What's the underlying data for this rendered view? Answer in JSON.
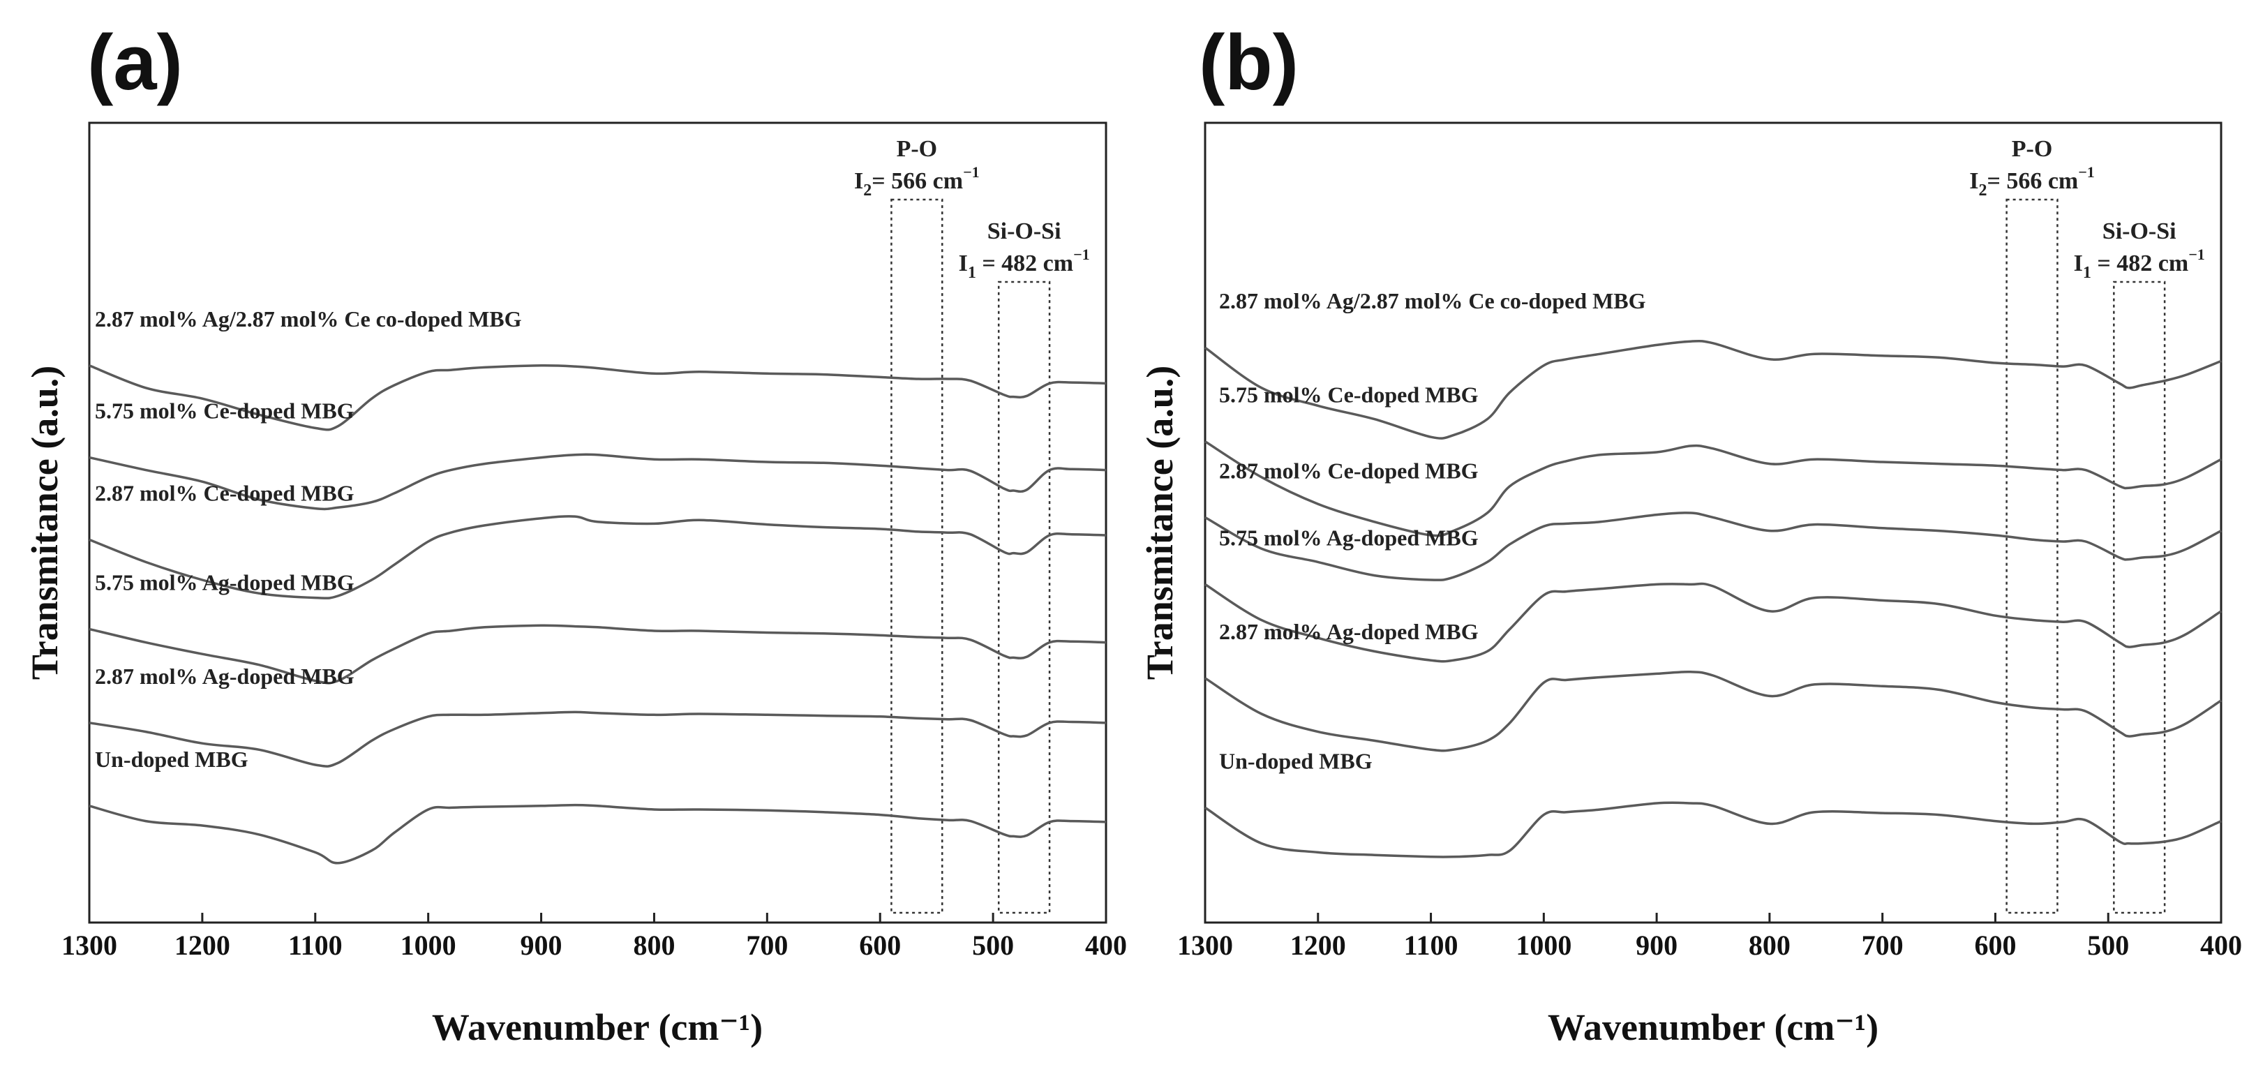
{
  "chart_data": [
    {
      "panel": "(a)",
      "type": "line",
      "xlabel": "Wavenumber (cm⁻¹)",
      "ylabel": "Transmitance (a.u.)",
      "xlim": [
        1300,
        400
      ],
      "x_reversed": true,
      "x_ticks": [
        "1300",
        "1200",
        "1100",
        "1000",
        "900",
        "800",
        "700",
        "600",
        "500",
        "400"
      ],
      "y_ticks_shown": false,
      "x": [
        1300,
        1250,
        1200,
        1150,
        1100,
        1080,
        1050,
        1030,
        1000,
        980,
        950,
        900,
        870,
        850,
        800,
        760,
        700,
        650,
        600,
        566,
        540,
        520,
        490,
        482,
        470,
        450,
        430,
        400
      ],
      "series": [
        {
          "name": "2.87 mol% Ag/2.87 mol% Ce co-doped MBG",
          "offset": 5,
          "values": [
            5.15,
            4.9,
            4.78,
            4.6,
            4.45,
            4.47,
            4.78,
            4.93,
            5.08,
            5.1,
            5.13,
            5.15,
            5.14,
            5.12,
            5.06,
            5.08,
            5.06,
            5.05,
            5.02,
            5.0,
            5.0,
            4.98,
            4.82,
            4.8,
            4.81,
            4.95,
            4.96,
            4.95
          ]
        },
        {
          "name": "5.75 mol% Ce-doped MBG",
          "offset": 4,
          "values": [
            4.12,
            3.98,
            3.85,
            3.65,
            3.55,
            3.56,
            3.62,
            3.72,
            3.9,
            3.98,
            4.05,
            4.12,
            4.15,
            4.15,
            4.1,
            4.1,
            4.07,
            4.06,
            4.03,
            4.0,
            3.98,
            3.97,
            3.77,
            3.75,
            3.76,
            3.98,
            3.99,
            3.98
          ]
        },
        {
          "name": "2.87 mol% Ce-doped MBG",
          "offset": 3,
          "values": [
            3.2,
            2.95,
            2.75,
            2.6,
            2.55,
            2.57,
            2.75,
            2.92,
            3.18,
            3.28,
            3.36,
            3.44,
            3.46,
            3.4,
            3.38,
            3.42,
            3.37,
            3.34,
            3.32,
            3.29,
            3.28,
            3.26,
            3.06,
            3.05,
            3.06,
            3.25,
            3.26,
            3.25
          ]
        },
        {
          "name": "5.75 mol% Ag-doped MBG",
          "offset": 2,
          "values": [
            2.2,
            2.05,
            1.92,
            1.8,
            1.62,
            1.62,
            1.85,
            1.98,
            2.15,
            2.18,
            2.22,
            2.24,
            2.23,
            2.22,
            2.18,
            2.18,
            2.16,
            2.15,
            2.13,
            2.11,
            2.1,
            2.08,
            1.9,
            1.88,
            1.89,
            2.05,
            2.06,
            2.05
          ]
        },
        {
          "name": "2.87 mol% Ag-doped MBG",
          "offset": 1,
          "values": [
            1.15,
            1.05,
            0.92,
            0.85,
            0.68,
            0.7,
            0.95,
            1.08,
            1.22,
            1.24,
            1.24,
            1.26,
            1.27,
            1.26,
            1.24,
            1.25,
            1.24,
            1.23,
            1.22,
            1.2,
            1.19,
            1.18,
            1.02,
            1.0,
            1.01,
            1.15,
            1.16,
            1.15
          ]
        },
        {
          "name": "Un-doped MBG",
          "offset": 0,
          "values": [
            0.22,
            0.05,
            0.0,
            -0.1,
            -0.3,
            -0.42,
            -0.28,
            -0.08,
            0.18,
            0.2,
            0.21,
            0.22,
            0.23,
            0.22,
            0.18,
            0.18,
            0.17,
            0.15,
            0.12,
            0.08,
            0.06,
            0.05,
            -0.1,
            -0.12,
            -0.11,
            0.04,
            0.05,
            0.04
          ]
        }
      ],
      "annotations": [
        {
          "label": "P-O",
          "sublabel_sym": "I",
          "sublabel_sub": "2",
          "sublabel_rest": "= 566 cm",
          "sublabel_sup": "−1",
          "x_range": [
            590,
            545
          ]
        },
        {
          "label": "Si-O-Si",
          "sublabel_sym": "I",
          "sublabel_sub": "1",
          "sublabel_rest": " = 482 cm",
          "sublabel_sup": "−1",
          "x_range": [
            495,
            450
          ]
        }
      ]
    },
    {
      "panel": "(b)",
      "type": "line",
      "xlabel": "Wavenumber (cm⁻¹)",
      "ylabel": "Transmitance (a.u.)",
      "xlim": [
        1300,
        400
      ],
      "x_reversed": true,
      "x_ticks": [
        "1300",
        "1200",
        "1100",
        "1000",
        "900",
        "800",
        "700",
        "600",
        "500",
        "400"
      ],
      "y_ticks_shown": false,
      "x": [
        1300,
        1250,
        1200,
        1150,
        1100,
        1080,
        1050,
        1030,
        1000,
        980,
        950,
        900,
        870,
        850,
        800,
        760,
        700,
        650,
        600,
        566,
        540,
        520,
        490,
        482,
        470,
        450,
        430,
        400
      ],
      "series": [
        {
          "name": "2.87 mol% Ag/2.87 mol% Ce co-doped MBG",
          "offset": 5,
          "values": [
            5.35,
            4.9,
            4.7,
            4.55,
            4.35,
            4.37,
            4.55,
            4.85,
            5.15,
            5.22,
            5.28,
            5.38,
            5.42,
            5.4,
            5.22,
            5.28,
            5.26,
            5.24,
            5.18,
            5.16,
            5.14,
            5.15,
            4.95,
            4.9,
            4.93,
            4.98,
            5.05,
            5.2
          ]
        },
        {
          "name": "5.75 mol% Ce-doped MBG",
          "offset": 4,
          "values": [
            4.3,
            3.9,
            3.6,
            3.4,
            3.25,
            3.3,
            3.5,
            3.8,
            4.0,
            4.08,
            4.15,
            4.18,
            4.25,
            4.22,
            4.05,
            4.1,
            4.07,
            4.05,
            4.03,
            4.0,
            3.98,
            3.98,
            3.8,
            3.78,
            3.8,
            3.82,
            3.9,
            4.1
          ]
        },
        {
          "name": "2.87 mol% Ce-doped MBG",
          "offset": 3,
          "values": [
            3.45,
            3.1,
            2.95,
            2.8,
            2.75,
            2.78,
            2.95,
            3.15,
            3.35,
            3.38,
            3.4,
            3.48,
            3.5,
            3.45,
            3.3,
            3.37,
            3.33,
            3.3,
            3.25,
            3.2,
            3.18,
            3.18,
            3.0,
            2.98,
            3.0,
            3.02,
            3.1,
            3.3
          ]
        },
        {
          "name": "5.75 mol% Ag-doped MBG",
          "offset": 2,
          "values": [
            2.7,
            2.3,
            2.1,
            1.95,
            1.85,
            1.85,
            1.95,
            2.2,
            2.58,
            2.62,
            2.65,
            2.7,
            2.7,
            2.68,
            2.4,
            2.55,
            2.52,
            2.48,
            2.35,
            2.3,
            2.28,
            2.28,
            2.05,
            2.0,
            2.02,
            2.05,
            2.15,
            2.4
          ]
        },
        {
          "name": "2.87 mol% Ag-doped MBG",
          "offset": 1,
          "values": [
            1.65,
            1.25,
            1.05,
            0.95,
            0.85,
            0.85,
            0.95,
            1.15,
            1.6,
            1.63,
            1.66,
            1.7,
            1.72,
            1.68,
            1.45,
            1.58,
            1.56,
            1.52,
            1.38,
            1.32,
            1.3,
            1.28,
            1.05,
            1.0,
            1.02,
            1.05,
            1.15,
            1.4
          ]
        },
        {
          "name": "Un-doped MBG",
          "offset": 0,
          "values": [
            0.2,
            -0.2,
            -0.3,
            -0.33,
            -0.35,
            -0.35,
            -0.33,
            -0.28,
            0.12,
            0.15,
            0.18,
            0.25,
            0.25,
            0.22,
            0.02,
            0.15,
            0.14,
            0.12,
            0.05,
            0.02,
            0.04,
            0.06,
            -0.18,
            -0.2,
            -0.2,
            -0.18,
            -0.12,
            0.05
          ]
        }
      ],
      "annotations": [
        {
          "label": "P-O",
          "sublabel_sym": "I",
          "sublabel_sub": "2",
          "sublabel_rest": "= 566 cm",
          "sublabel_sup": "−1",
          "x_range": [
            590,
            545
          ]
        },
        {
          "label": "Si-O-Si",
          "sublabel_sym": "I",
          "sublabel_sub": "1",
          "sublabel_rest": " = 482 cm",
          "sublabel_sup": "−1",
          "x_range": [
            495,
            450
          ]
        }
      ]
    }
  ]
}
